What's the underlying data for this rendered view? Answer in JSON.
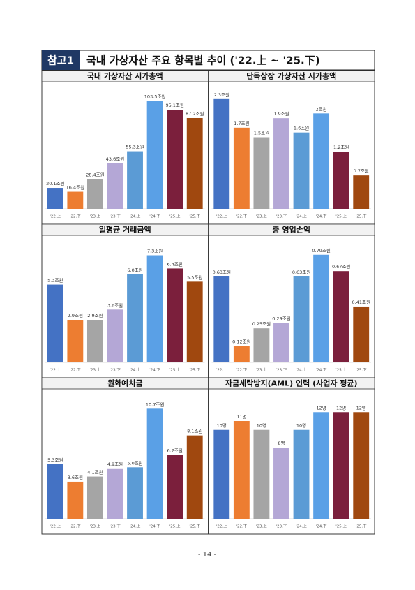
{
  "header": {
    "badge": "참고1",
    "title": "국내 가상자산 주요 항목별 추이 ('22.上 ~ '25.下)"
  },
  "chart_data": [
    {
      "type": "bar",
      "title": "국내 가상자산 시가총액",
      "categories": [
        "'22.上",
        "'22.下",
        "'23.上",
        "'23.下",
        "'24.上",
        "'24.下",
        "'25.上",
        "'25.下"
      ],
      "values": [
        20.1,
        16.4,
        28.4,
        43.6,
        55.3,
        103.5,
        95.1,
        87.2
      ],
      "value_labels": [
        "20.1조원",
        "16.4조원",
        "28.4조원",
        "43.6조원",
        "55.3조원",
        "103.5조원",
        "95.1조원",
        "87.2조원"
      ],
      "colors": [
        "#4472c4",
        "#ed7d31",
        "#a5a5a5",
        "#b4a7d6",
        "#5b9bd5",
        "#5aa0e6",
        "#7b1f3c",
        "#a0480f"
      ],
      "ylim": [
        0,
        110
      ]
    },
    {
      "type": "bar",
      "title": "단독상장 가상자산 시가총액",
      "categories": [
        "'22.上",
        "'22.下",
        "'23.上",
        "'23.下",
        "'24.上",
        "'24.下",
        "'25.上",
        "'25.下"
      ],
      "values": [
        2.3,
        1.7,
        1.5,
        1.9,
        1.6,
        2,
        1.2,
        0.7
      ],
      "value_labels": [
        "2.3조원",
        "1.7조원",
        "1.5조원",
        "1.9조원",
        "1.6조원",
        "2조원",
        "1.2조원",
        "0.7조원"
      ],
      "colors": [
        "#4472c4",
        "#ed7d31",
        "#a5a5a5",
        "#b4a7d6",
        "#5b9bd5",
        "#5aa0e6",
        "#7b1f3c",
        "#a0480f"
      ],
      "ylim": [
        0,
        2.4
      ]
    },
    {
      "type": "bar",
      "title": "일평균 거래금액",
      "categories": [
        "'22.上",
        "'22.下",
        "'23.上",
        "'23.下",
        "'24.上",
        "'24.下",
        "'25.上",
        "'25.下"
      ],
      "values": [
        5.3,
        2.9,
        2.9,
        3.6,
        6,
        7.3,
        6.4,
        5.5
      ],
      "value_labels": [
        "5.3조원",
        "2.9조원",
        "2.9조원",
        "3.6조원",
        "6.0조원",
        "7.3조원",
        "6.4조원",
        "5.5조원"
      ],
      "colors": [
        "#4472c4",
        "#ed7d31",
        "#a5a5a5",
        "#b4a7d6",
        "#5b9bd5",
        "#5aa0e6",
        "#7b1f3c",
        "#a0480f"
      ],
      "ylim": [
        0,
        7.8
      ]
    },
    {
      "type": "bar",
      "title": "총 영업손익",
      "categories": [
        "'22.上",
        "'22.下",
        "'23.上",
        "'23.下",
        "'24.上",
        "'24.下",
        "'25.上",
        "'25.下"
      ],
      "values": [
        0.63,
        0.12,
        0.25,
        0.29,
        0.63,
        0.79,
        0.67,
        0.41
      ],
      "value_labels": [
        "0.63조원",
        "0.12조원",
        "0.25조원",
        "0.29조원",
        "0.63조원",
        "0.79조원",
        "0.67조원",
        "0.41조원"
      ],
      "colors": [
        "#4472c4",
        "#ed7d31",
        "#a5a5a5",
        "#b4a7d6",
        "#5b9bd5",
        "#5aa0e6",
        "#7b1f3c",
        "#a0480f"
      ],
      "ylim": [
        0,
        0.84
      ]
    },
    {
      "type": "bar",
      "title": "원화예치금",
      "categories": [
        "'22.上",
        "'22.下",
        "'23.上",
        "'23.下",
        "'24.上",
        "'24.下",
        "'25.上",
        "'25.下"
      ],
      "values": [
        5.3,
        3.6,
        4.1,
        4.9,
        5,
        10.7,
        6.2,
        8.1
      ],
      "value_labels": [
        "5.3조원",
        "3.6조원",
        "4.1조원",
        "4.9조원",
        "5.0조원",
        "10.7조원",
        "6.2조원",
        "8.1조원"
      ],
      "colors": [
        "#4472c4",
        "#ed7d31",
        "#a5a5a5",
        "#b4a7d6",
        "#5b9bd5",
        "#5aa0e6",
        "#7b1f3c",
        "#a0480f"
      ],
      "ylim": [
        0,
        11.4
      ]
    },
    {
      "type": "bar",
      "title": "자금세탁방지(AML) 인력 (사업자 평균)",
      "categories": [
        "'22.上",
        "'22.下",
        "'23.上",
        "'23.下",
        "'24.上",
        "'24.下",
        "'25.上",
        "'25.下"
      ],
      "values": [
        10,
        11,
        10,
        8,
        10,
        12,
        12,
        12
      ],
      "value_labels": [
        "10명",
        "11명",
        "10명",
        "8명",
        "10명",
        "12명",
        "12명",
        "12명"
      ],
      "colors": [
        "#4472c4",
        "#ed7d31",
        "#a5a5a5",
        "#b4a7d6",
        "#5b9bd5",
        "#5aa0e6",
        "#7b1f3c",
        "#a0480f"
      ],
      "ylim": [
        0,
        13.2
      ]
    }
  ],
  "footer": {
    "page": "- 14 -"
  }
}
